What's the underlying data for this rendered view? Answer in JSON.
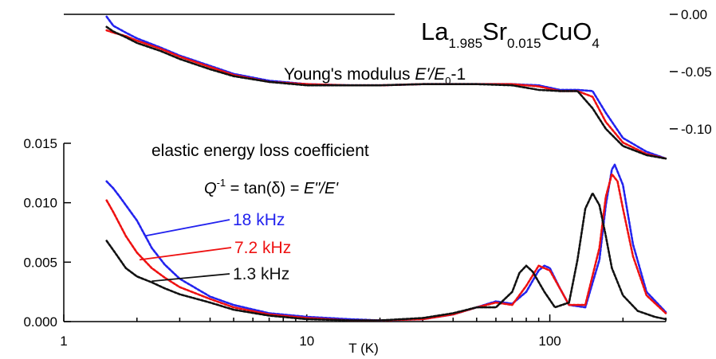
{
  "figure": {
    "title_main": "La",
    "title_sub1": "1.985",
    "title_sr": "Sr",
    "title_sub2": "0.015",
    "title_cuo": "CuO",
    "title_sub3": "4"
  },
  "top_panel": {
    "label_prefix": "Young's modulus  ",
    "label_e": "E'/E",
    "label_sub": "0",
    "label_suffix": "-1"
  },
  "bottom_panel": {
    "label_line1": "elastic energy loss coefficient",
    "formula_q": "Q",
    "formula_sup": "-1",
    "formula_mid": " = tan(δ) = ",
    "formula_e": "E\"/E'"
  },
  "colors": {
    "blue": "#2222ee",
    "red": "#ee1111",
    "black": "#111111"
  },
  "chart_data": [
    {
      "type": "line",
      "title": "Young's modulus E'/E0-1",
      "xlabel": "",
      "ylabel": "",
      "xscale": "log",
      "xlim": [
        1,
        300
      ],
      "ylim": [
        -0.13,
        0.0
      ],
      "y_ticks": [
        0.0,
        -0.05,
        -0.1
      ],
      "y_tick_labels": [
        "0.00",
        "-0.05",
        "-0.10"
      ],
      "y_axis_side": "right",
      "series": [
        {
          "name": "18 kHz",
          "color": "blue",
          "x": [
            1.5,
            1.6,
            1.8,
            2,
            2.5,
            3,
            4,
            5,
            7,
            10,
            15,
            20,
            30,
            50,
            70,
            90,
            110,
            130,
            150,
            170,
            200,
            250,
            300
          ],
          "y": [
            -0.002,
            -0.01,
            -0.016,
            -0.021,
            -0.029,
            -0.036,
            -0.045,
            -0.052,
            -0.058,
            -0.061,
            -0.062,
            -0.062,
            -0.061,
            -0.061,
            -0.061,
            -0.062,
            -0.066,
            -0.066,
            -0.067,
            -0.086,
            -0.108,
            -0.12,
            -0.126
          ]
        },
        {
          "name": "7.2 kHz",
          "color": "red",
          "x": [
            1.5,
            1.6,
            1.8,
            2,
            2.5,
            3,
            4,
            5,
            7,
            10,
            15,
            20,
            30,
            50,
            70,
            90,
            110,
            130,
            150,
            170,
            200,
            250,
            300
          ],
          "y": [
            -0.014,
            -0.016,
            -0.019,
            -0.023,
            -0.03,
            -0.037,
            -0.046,
            -0.053,
            -0.059,
            -0.061,
            -0.062,
            -0.062,
            -0.061,
            -0.061,
            -0.061,
            -0.063,
            -0.067,
            -0.067,
            -0.072,
            -0.094,
            -0.112,
            -0.122,
            -0.126
          ]
        },
        {
          "name": "1.3 kHz",
          "color": "black",
          "x": [
            1.5,
            1.6,
            1.8,
            2,
            2.5,
            3,
            4,
            5,
            7,
            10,
            15,
            20,
            30,
            50,
            70,
            90,
            110,
            130,
            150,
            170,
            200,
            250,
            300
          ],
          "y": [
            -0.011,
            -0.015,
            -0.02,
            -0.025,
            -0.032,
            -0.039,
            -0.048,
            -0.054,
            -0.059,
            -0.062,
            -0.062,
            -0.062,
            -0.061,
            -0.061,
            -0.062,
            -0.066,
            -0.067,
            -0.067,
            -0.082,
            -0.1,
            -0.115,
            -0.123,
            -0.126
          ]
        }
      ]
    },
    {
      "type": "line",
      "title": "elastic energy loss coefficient",
      "xlabel": "T (K)",
      "ylabel": "",
      "xscale": "log",
      "xlim": [
        1,
        300
      ],
      "ylim": [
        0.0,
        0.015
      ],
      "x_ticks": [
        1,
        10,
        100
      ],
      "x_tick_labels": [
        "1",
        "10",
        "100"
      ],
      "y_ticks": [
        0.0,
        0.005,
        0.01,
        0.015
      ],
      "y_tick_labels": [
        "0.000",
        "0.005",
        "0.010",
        "0.015"
      ],
      "series": [
        {
          "name": "18 kHz",
          "color": "blue",
          "x": [
            1.5,
            1.6,
            1.7,
            2,
            2.3,
            2.6,
            3,
            4,
            5,
            7,
            10,
            15,
            20,
            30,
            40,
            50,
            60,
            70,
            80,
            90,
            95,
            100,
            110,
            120,
            140,
            160,
            170,
            180,
            185,
            200,
            220,
            250,
            300
          ],
          "y": [
            0.0118,
            0.0112,
            0.0105,
            0.0085,
            0.0062,
            0.0048,
            0.0036,
            0.0021,
            0.0014,
            0.0007,
            0.0004,
            0.0002,
            0.0001,
            0.0002,
            0.0006,
            0.0012,
            0.0017,
            0.0015,
            0.0025,
            0.0043,
            0.0047,
            0.0045,
            0.0028,
            0.0014,
            0.0012,
            0.0052,
            0.0098,
            0.0128,
            0.0132,
            0.0115,
            0.0065,
            0.0025,
            0.0008
          ]
        },
        {
          "name": "7.2 kHz",
          "color": "red",
          "x": [
            1.5,
            1.6,
            1.8,
            2,
            2.3,
            2.6,
            3,
            4,
            5,
            7,
            10,
            15,
            20,
            30,
            40,
            50,
            60,
            70,
            80,
            90,
            100,
            110,
            120,
            140,
            160,
            170,
            180,
            190,
            200,
            220,
            250,
            300
          ],
          "y": [
            0.0102,
            0.0092,
            0.0072,
            0.0058,
            0.0045,
            0.0037,
            0.0029,
            0.0019,
            0.0012,
            0.0006,
            0.0003,
            0.0001,
            0.0001,
            0.0002,
            0.0006,
            0.0012,
            0.0016,
            0.0014,
            0.003,
            0.0047,
            0.0043,
            0.0028,
            0.0014,
            0.0014,
            0.0062,
            0.0105,
            0.0124,
            0.0118,
            0.0095,
            0.0055,
            0.0022,
            0.0007
          ]
        },
        {
          "name": "1.3 kHz",
          "color": "black",
          "x": [
            1.5,
            1.6,
            1.8,
            2,
            2.3,
            2.6,
            3,
            4,
            5,
            7,
            10,
            15,
            20,
            30,
            40,
            50,
            60,
            70,
            75,
            80,
            85,
            95,
            105,
            120,
            130,
            140,
            150,
            160,
            170,
            180,
            200,
            230,
            270,
            300
          ],
          "y": [
            0.0068,
            0.006,
            0.0045,
            0.0038,
            0.0033,
            0.0028,
            0.0023,
            0.0016,
            0.001,
            0.0005,
            0.0002,
            0.0001,
            0.0001,
            0.0003,
            0.0007,
            0.0012,
            0.0012,
            0.0025,
            0.0041,
            0.0047,
            0.0042,
            0.0025,
            0.0012,
            0.0016,
            0.0052,
            0.0095,
            0.0108,
            0.0098,
            0.0072,
            0.0045,
            0.0022,
            0.0009,
            0.0004,
            0.0002
          ]
        }
      ]
    }
  ],
  "annotations": [
    {
      "text": "18 kHz",
      "color": "blue",
      "tx": 2.15,
      "ty": 0.0072,
      "from": "top"
    },
    {
      "text": "7.2 kHz",
      "color": "red",
      "tx": 2.05,
      "ty": 0.0052,
      "from": "mid"
    },
    {
      "text": "1.3 kHz",
      "color": "black",
      "tx": 2.3,
      "ty": 0.0034,
      "from": "bot"
    }
  ]
}
